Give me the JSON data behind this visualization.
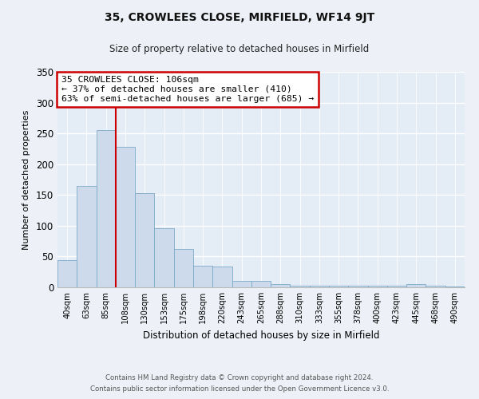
{
  "title": "35, CROWLEES CLOSE, MIRFIELD, WF14 9JT",
  "subtitle": "Size of property relative to detached houses in Mirfield",
  "xlabel": "Distribution of detached houses by size in Mirfield",
  "ylabel": "Number of detached properties",
  "bar_labels": [
    "40sqm",
    "63sqm",
    "85sqm",
    "108sqm",
    "130sqm",
    "153sqm",
    "175sqm",
    "198sqm",
    "220sqm",
    "243sqm",
    "265sqm",
    "288sqm",
    "310sqm",
    "333sqm",
    "355sqm",
    "378sqm",
    "400sqm",
    "423sqm",
    "445sqm",
    "468sqm",
    "490sqm"
  ],
  "bar_values": [
    44,
    165,
    255,
    228,
    153,
    96,
    62,
    35,
    34,
    11,
    11,
    5,
    2,
    2,
    2,
    2,
    2,
    2,
    5,
    2,
    1
  ],
  "bar_color": "#ccdaeb",
  "bar_edge_color": "#7aaac8",
  "vline_color": "#cc0000",
  "vline_pos": 2.5,
  "ylim": [
    0,
    350
  ],
  "yticks": [
    0,
    50,
    100,
    150,
    200,
    250,
    300,
    350
  ],
  "annotation_title": "35 CROWLEES CLOSE: 106sqm",
  "annotation_line1": "← 37% of detached houses are smaller (410)",
  "annotation_line2": "63% of semi-detached houses are larger (685) →",
  "annotation_box_color": "#ffffff",
  "annotation_border_color": "#cc0000",
  "footer_line1": "Contains HM Land Registry data © Crown copyright and database right 2024.",
  "footer_line2": "Contains public sector information licensed under the Open Government Licence v3.0.",
  "background_color": "#edf1f7",
  "plot_bg_color": "#e4ecf5"
}
